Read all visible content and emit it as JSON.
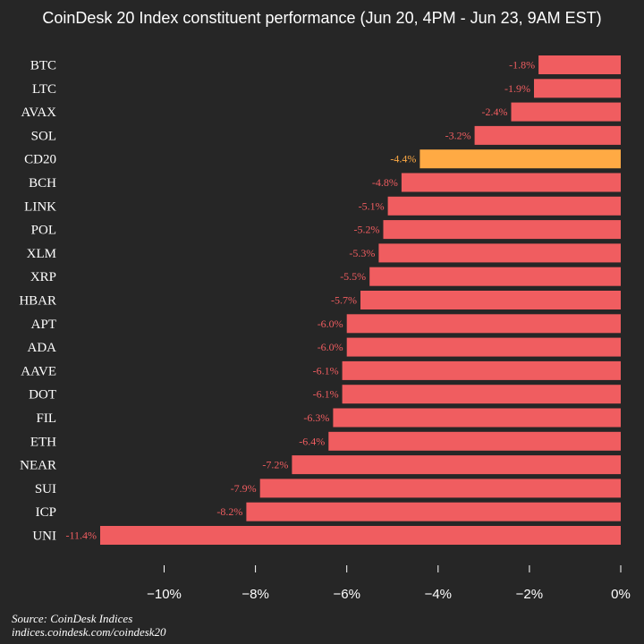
{
  "chart_data": {
    "type": "bar",
    "orientation": "horizontal",
    "title": "CoinDesk 20 Index constituent performance (Jun 20, 4PM - Jun 23, 9AM EST)",
    "xlabel": "",
    "ylabel": "",
    "xlim": [
      -12,
      0
    ],
    "grid": false,
    "legend": "none",
    "categories": [
      "BTC",
      "LTC",
      "AVAX",
      "SOL",
      "CD20",
      "BCH",
      "LINK",
      "POL",
      "XLM",
      "XRP",
      "HBAR",
      "APT",
      "ADA",
      "AAVE",
      "DOT",
      "FIL",
      "ETH",
      "NEAR",
      "SUI",
      "ICP",
      "UNI"
    ],
    "values": [
      -1.8,
      -1.9,
      -2.4,
      -3.2,
      -4.4,
      -4.8,
      -5.1,
      -5.2,
      -5.3,
      -5.5,
      -5.7,
      -6.0,
      -6.0,
      -6.1,
      -6.1,
      -6.3,
      -6.4,
      -7.2,
      -7.9,
      -8.2,
      -11.4
    ],
    "data_labels": [
      "-1.8%",
      "-1.9%",
      "-2.4%",
      "-3.2%",
      "-4.4%",
      "-4.8%",
      "-5.1%",
      "-5.2%",
      "-5.3%",
      "-5.5%",
      "-5.7%",
      "-6.0%",
      "-6.0%",
      "-6.1%",
      "-6.1%",
      "-6.3%",
      "-6.4%",
      "-7.2%",
      "-7.9%",
      "-8.2%",
      "-11.4%"
    ],
    "highlight_category": "CD20",
    "x_ticks": [
      -10,
      -8,
      -6,
      -4,
      -2,
      0
    ],
    "x_tick_labels": [
      "−10%",
      "−8%",
      "−6%",
      "−4%",
      "−2%",
      "0%"
    ],
    "colors": {
      "bar": "#f05d60",
      "highlight": "#ffaa44",
      "label": "#f05d60",
      "highlight_label": "#ffaa44",
      "background": "#262626",
      "text": "#ffffff"
    }
  },
  "source": {
    "line1": "Source: CoinDesk Indices",
    "line2": "indices.coindesk.com/coindesk20"
  }
}
